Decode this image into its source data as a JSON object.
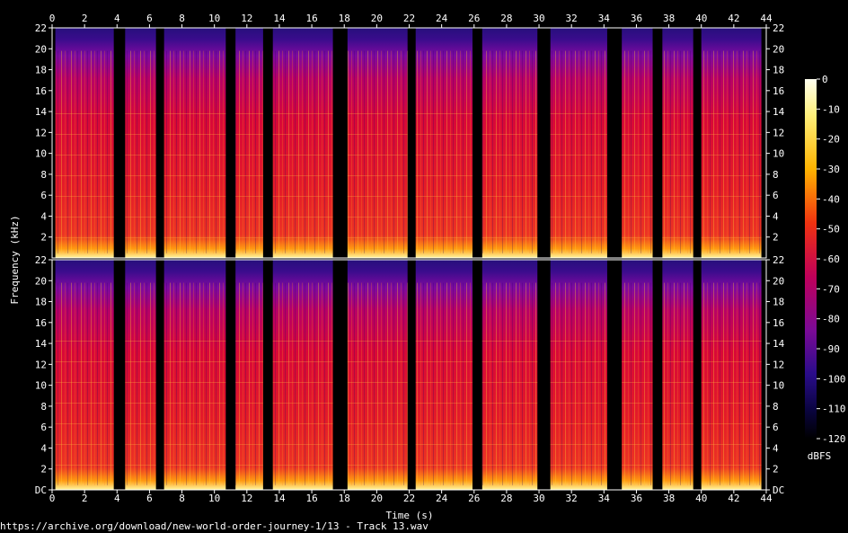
{
  "chart_data": {
    "type": "heatmap",
    "xlabel": "Time (s)",
    "ylabel": "Frequency (kHz)",
    "xlim": [
      0,
      44
    ],
    "ylim": [
      0,
      22
    ],
    "x_ticks": [
      "0",
      "2",
      "4",
      "6",
      "8",
      "10",
      "12",
      "14",
      "16",
      "18",
      "20",
      "22",
      "24",
      "26",
      "28",
      "30",
      "32",
      "34",
      "36",
      "38",
      "40",
      "42",
      "44"
    ],
    "y_ticks_top": [
      "2",
      "4",
      "6",
      "8",
      "10",
      "12",
      "14",
      "16",
      "18",
      "20",
      "22"
    ],
    "y_ticks_bottom": [
      "DC",
      "2",
      "4",
      "6",
      "8",
      "10",
      "12",
      "14",
      "16",
      "18",
      "20",
      "22"
    ],
    "colorbar": {
      "label": "dBFS",
      "range": [
        -120,
        0
      ],
      "ticks": [
        "0",
        "-10",
        "-20",
        "-30",
        "-40",
        "-50",
        "-60",
        "-70",
        "-80",
        "-90",
        "-100",
        "-110",
        "-120"
      ]
    },
    "channels": 2,
    "active_segments_s": [
      [
        0.2,
        3.8
      ],
      [
        4.5,
        6.4
      ],
      [
        6.9,
        10.7
      ],
      [
        11.3,
        13.0
      ],
      [
        13.6,
        17.3
      ],
      [
        18.2,
        21.9
      ],
      [
        22.4,
        25.9
      ],
      [
        26.5,
        29.9
      ],
      [
        30.7,
        34.2
      ],
      [
        35.1,
        37.0
      ],
      [
        37.6,
        39.5
      ],
      [
        40.0,
        43.7
      ]
    ],
    "source_url": "https://archive.org/download/new-world-order-journey-1/13 - Track 13.wav"
  }
}
